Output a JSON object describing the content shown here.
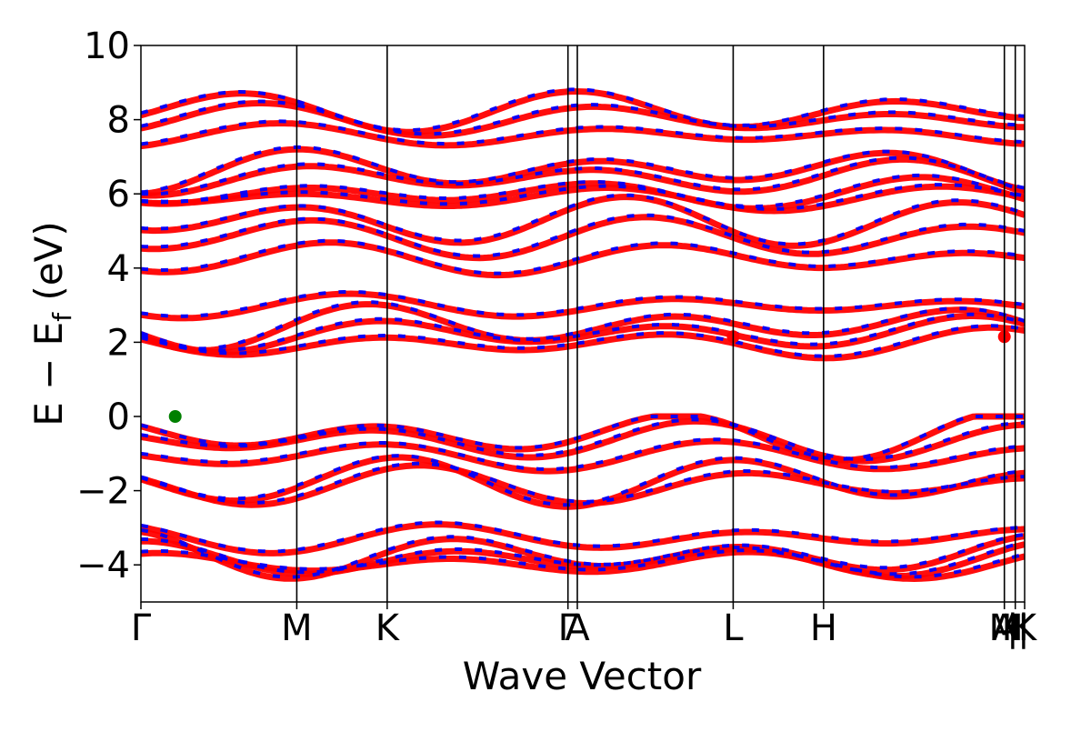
{
  "chart_data": {
    "type": "line",
    "title": "",
    "xlabel": "Wave Vector",
    "ylabel": "E − E",
    "ylabel_subscript": "f",
    "ylabel_unit": " (eV)",
    "ylim": [
      -5,
      10
    ],
    "yticks": [
      -4,
      -2,
      0,
      2,
      4,
      6,
      8,
      10
    ],
    "ytick_labels": [
      "−4",
      "−2",
      "0",
      "2",
      "4",
      "6",
      "8",
      "10"
    ],
    "kpath_positions": [
      0,
      1.0,
      1.58,
      2.74,
      2.8,
      3.8,
      4.38,
      5.54,
      5.61,
      5.67
    ],
    "kpath_labels": [
      "Γ",
      "M",
      "K",
      "Γ",
      "A",
      "L",
      "H",
      "A",
      "M",
      "H",
      "K"
    ],
    "kpath_label_positions": [
      0,
      1.0,
      1.58,
      2.74,
      2.8,
      3.8,
      4.38,
      5.54,
      5.54,
      5.61,
      5.67
    ],
    "segment_dividers": [
      "|",
      "|"
    ],
    "grid": false,
    "series": [
      {
        "color": "#ff0000",
        "values": [
          -3.7,
          -3.5,
          -3.3,
          -3.0,
          -1.5,
          -1.3,
          -0.8,
          -0.3,
          -0.05,
          2.25,
          2.6,
          2.9,
          3.2,
          4.55,
          5.2,
          5.7,
          6.1,
          6.3,
          6.8,
          7.1,
          7.8,
          8.3,
          8.6
        ]
      },
      {
        "color": "#0000ff",
        "values": [
          -3.65,
          -3.45,
          -3.25,
          -2.95,
          -1.45,
          -1.25,
          -0.75,
          -0.25,
          -0.02,
          2.3,
          2.65,
          2.95,
          3.25,
          4.6,
          5.25,
          5.75,
          6.15,
          6.35,
          6.85,
          7.15,
          7.85,
          8.35,
          8.65
        ]
      }
    ],
    "vbm_marker": {
      "x": 0.22,
      "y": 0.0,
      "color": "#008000"
    },
    "cbm_markers": [
      {
        "x": 3.8,
        "y": 2.15,
        "color": "#ff0000"
      },
      {
        "x": 5.54,
        "y": 2.15,
        "color": "#ff0000"
      }
    ]
  }
}
